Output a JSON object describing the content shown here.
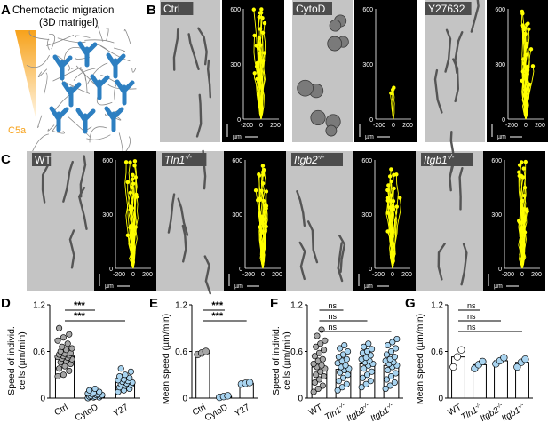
{
  "panels": {
    "A": {
      "letter": "A",
      "title": "Chemotactic migration",
      "subtitle": "(3D matrigel)",
      "gradient_label": "C5a",
      "gradient_color": "#f7a21b"
    },
    "B": {
      "letter": "B",
      "conditions": [
        "Ctrl",
        "CytoD",
        "Y27632"
      ]
    },
    "C": {
      "letter": "C",
      "conditions": [
        {
          "base": "WT",
          "sup": ""
        },
        {
          "base": "Tln1",
          "sup": "-/-"
        },
        {
          "base": "Itgb2",
          "sup": "-/-"
        },
        {
          "base": "Itgb1",
          "sup": "-/-"
        }
      ]
    },
    "track_axes": {
      "y_ticks": [
        "600",
        "300",
        "0"
      ],
      "x_ticks": [
        "-200",
        "0",
        "200"
      ],
      "unit": "µm"
    },
    "D": {
      "letter": "D",
      "ylabel": [
        "Speed of individ.",
        "cells (µm/min)"
      ]
    },
    "E": {
      "letter": "E",
      "ylabel": "Mean speed (µm/min)"
    },
    "F": {
      "letter": "F",
      "ylabel": [
        "Speed of individ.",
        "cells (µm/min)"
      ]
    },
    "G": {
      "letter": "G",
      "ylabel": "Mean speed (µm/min)"
    }
  },
  "colors": {
    "track": "#ffff00",
    "cell_blue": "#2d7fc1",
    "bar_fill_D_ctrl": "#a6a6a6",
    "bar_fill_light_blue": "#a9d4f0",
    "microscopy_bg": "#c4c4c4",
    "track_bg": "#000000"
  },
  "chart_data": [
    {
      "id": "D",
      "type": "bar",
      "categories": [
        "Ctrl",
        "CytoD",
        "Y27"
      ],
      "values": [
        0.54,
        0.04,
        0.2
      ],
      "ylabel": "Speed of individ. cells (µm/min)",
      "ylim": [
        0,
        1.2
      ],
      "yticks": [
        "0",
        "0.6",
        "1.2"
      ],
      "points": [
        [
          0.28,
          0.3,
          0.35,
          0.38,
          0.41,
          0.44,
          0.46,
          0.48,
          0.5,
          0.51,
          0.52,
          0.53,
          0.54,
          0.55,
          0.56,
          0.57,
          0.58,
          0.6,
          0.62,
          0.64,
          0.66,
          0.7,
          0.74,
          0.78,
          0.82,
          0.9
        ],
        [
          0.0,
          0.01,
          0.01,
          0.02,
          0.02,
          0.03,
          0.03,
          0.04,
          0.04,
          0.05,
          0.05,
          0.06,
          0.07,
          0.08,
          0.1,
          0.12
        ],
        [
          0.08,
          0.1,
          0.12,
          0.14,
          0.16,
          0.17,
          0.18,
          0.19,
          0.2,
          0.21,
          0.22,
          0.23,
          0.24,
          0.26,
          0.28,
          0.3,
          0.34,
          0.38
        ]
      ],
      "significance": [
        {
          "from": 0,
          "to": 1,
          "label": "***"
        },
        {
          "from": 0,
          "to": 2,
          "label": "***"
        }
      ]
    },
    {
      "id": "E",
      "type": "bar",
      "categories": [
        "Ctrl",
        "CytoD",
        "Y27"
      ],
      "values": [
        0.58,
        0.02,
        0.19
      ],
      "ylabel": "Mean speed (µm/min)",
      "ylim": [
        0,
        1.2
      ],
      "yticks": [
        "0",
        "0.6",
        "1.2"
      ],
      "points": [
        [
          0.56,
          0.58,
          0.6
        ],
        [
          0.01,
          0.02,
          0.03
        ],
        [
          0.18,
          0.19,
          0.2
        ]
      ],
      "significance": [
        {
          "from": 0,
          "to": 1,
          "label": "***"
        },
        {
          "from": 0,
          "to": 2,
          "label": "***"
        }
      ]
    },
    {
      "id": "F",
      "type": "bar",
      "categories": [
        "WT",
        "Tln1-/-",
        "Itgb2-/-",
        "Itgb1-/-"
      ],
      "values": [
        0.4,
        0.37,
        0.44,
        0.42
      ],
      "ylabel": "Speed of individ. cells (µm/min)",
      "ylim": [
        0,
        1.2
      ],
      "yticks": [
        "0",
        "0.6",
        "1.2"
      ],
      "points": [
        [
          0.08,
          0.12,
          0.16,
          0.2,
          0.24,
          0.28,
          0.3,
          0.34,
          0.38,
          0.4,
          0.42,
          0.44,
          0.48,
          0.5,
          0.54,
          0.58,
          0.62,
          0.66,
          0.7,
          0.74,
          0.8,
          0.88
        ],
        [
          0.1,
          0.14,
          0.18,
          0.22,
          0.26,
          0.3,
          0.33,
          0.36,
          0.38,
          0.4,
          0.42,
          0.45,
          0.48,
          0.5,
          0.53,
          0.56,
          0.6,
          0.64,
          0.68
        ],
        [
          0.14,
          0.18,
          0.22,
          0.26,
          0.3,
          0.34,
          0.38,
          0.42,
          0.44,
          0.46,
          0.48,
          0.5,
          0.52,
          0.55,
          0.58,
          0.6,
          0.63,
          0.66,
          0.7
        ],
        [
          0.12,
          0.16,
          0.2,
          0.24,
          0.28,
          0.32,
          0.36,
          0.4,
          0.42,
          0.44,
          0.46,
          0.48,
          0.5,
          0.53,
          0.56,
          0.6,
          0.64,
          0.68,
          0.72,
          0.76
        ]
      ],
      "significance": [
        {
          "from": 0,
          "to": 1,
          "label": "ns"
        },
        {
          "from": 0,
          "to": 2,
          "label": "ns"
        },
        {
          "from": 0,
          "to": 3,
          "label": "ns"
        }
      ]
    },
    {
      "id": "G",
      "type": "bar",
      "categories": [
        "WT",
        "Tln1-/-",
        "Itgb2-/-",
        "Itgb1-/-"
      ],
      "values": [
        0.53,
        0.43,
        0.48,
        0.46
      ],
      "ylabel": "Mean speed (µm/min)",
      "ylim": [
        0,
        1.2
      ],
      "yticks": [
        "0",
        "0.6",
        "1.2"
      ],
      "points": [
        [
          0.4,
          0.53,
          0.62
        ],
        [
          0.38,
          0.43,
          0.47
        ],
        [
          0.44,
          0.48,
          0.52
        ],
        [
          0.4,
          0.46,
          0.5
        ]
      ],
      "significance": [
        {
          "from": 0,
          "to": 1,
          "label": "ns"
        },
        {
          "from": 0,
          "to": 2,
          "label": "ns"
        },
        {
          "from": 0,
          "to": 3,
          "label": "ns"
        }
      ]
    }
  ]
}
